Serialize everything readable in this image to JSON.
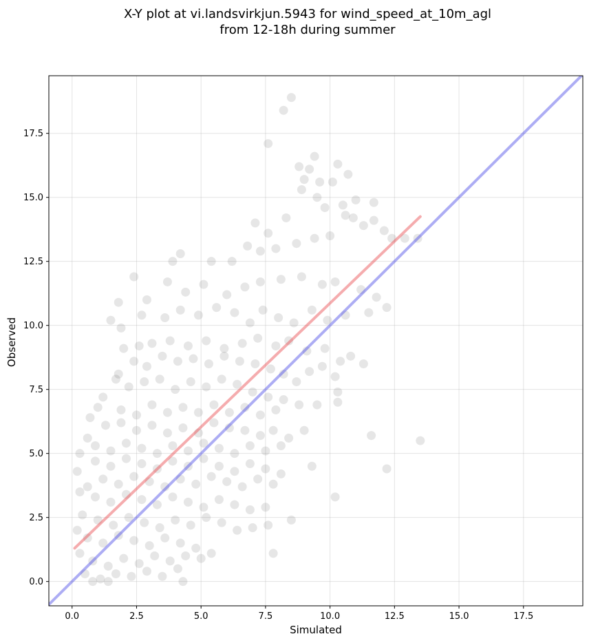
{
  "chart_data": {
    "type": "scatter",
    "title": "X-Y plot at vi.landsvirkjun.5943 for wind_speed_at_10m_agl",
    "subtitle": "from 12-18h during summer",
    "xlabel": "Simulated",
    "ylabel": "Observed",
    "xlim": [
      -0.9,
      19.8
    ],
    "ylim": [
      -0.95,
      19.75
    ],
    "xticks": [
      0.0,
      2.5,
      5.0,
      7.5,
      10.0,
      12.5,
      15.0,
      17.5
    ],
    "xtick_labels": [
      "0.0",
      "2.5",
      "5.0",
      "7.5",
      "10.0",
      "12.5",
      "15.0",
      "17.5"
    ],
    "yticks": [
      0.0,
      2.5,
      5.0,
      7.5,
      10.0,
      12.5,
      15.0,
      17.5
    ],
    "ytick_labels": [
      "0.0",
      "2.5",
      "5.0",
      "7.5",
      "10.0",
      "12.5",
      "15.0",
      "17.5"
    ],
    "grid": true,
    "point_color": "#555555",
    "point_opacity": 0.15,
    "regression_line": {
      "x": [
        0.1,
        13.5
      ],
      "y": [
        1.3,
        14.25
      ],
      "color": "#e8474c"
    },
    "identity_line": {
      "x": [
        -0.9,
        19.8
      ],
      "y": [
        -0.9,
        19.8
      ],
      "color": "#4a4ae6"
    },
    "points": [
      [
        8.5,
        18.9
      ],
      [
        8.2,
        18.4
      ],
      [
        7.6,
        17.1
      ],
      [
        9.4,
        16.6
      ],
      [
        10.3,
        16.3
      ],
      [
        9.2,
        16.1
      ],
      [
        8.8,
        16.2
      ],
      [
        10.7,
        15.9
      ],
      [
        10.1,
        15.6
      ],
      [
        9.6,
        15.6
      ],
      [
        9.0,
        15.7
      ],
      [
        8.9,
        15.3
      ],
      [
        9.5,
        15.0
      ],
      [
        11.0,
        14.9
      ],
      [
        10.5,
        14.7
      ],
      [
        11.7,
        14.8
      ],
      [
        10.9,
        14.2
      ],
      [
        12.1,
        13.7
      ],
      [
        11.7,
        14.1
      ],
      [
        13.4,
        13.4
      ],
      [
        12.4,
        13.4
      ],
      [
        10.0,
        13.5
      ],
      [
        9.4,
        13.4
      ],
      [
        8.7,
        13.2
      ],
      [
        7.6,
        13.6
      ],
      [
        7.1,
        14.0
      ],
      [
        7.9,
        13.0
      ],
      [
        7.3,
        12.9
      ],
      [
        6.8,
        13.1
      ],
      [
        6.2,
        12.5
      ],
      [
        5.4,
        12.5
      ],
      [
        4.2,
        12.8
      ],
      [
        3.9,
        12.5
      ],
      [
        2.4,
        11.9
      ],
      [
        3.7,
        11.7
      ],
      [
        4.4,
        11.3
      ],
      [
        5.1,
        11.6
      ],
      [
        6.0,
        11.2
      ],
      [
        6.7,
        11.5
      ],
      [
        7.3,
        11.7
      ],
      [
        8.1,
        11.8
      ],
      [
        8.9,
        11.9
      ],
      [
        9.7,
        11.6
      ],
      [
        10.2,
        11.7
      ],
      [
        11.2,
        11.4
      ],
      [
        11.8,
        11.1
      ],
      [
        12.2,
        10.7
      ],
      [
        11.5,
        10.5
      ],
      [
        10.6,
        10.4
      ],
      [
        9.9,
        10.2
      ],
      [
        9.3,
        10.6
      ],
      [
        8.6,
        10.1
      ],
      [
        8.0,
        10.3
      ],
      [
        7.4,
        10.6
      ],
      [
        6.9,
        10.1
      ],
      [
        6.3,
        10.5
      ],
      [
        5.6,
        10.7
      ],
      [
        4.9,
        10.4
      ],
      [
        4.2,
        10.6
      ],
      [
        3.6,
        10.3
      ],
      [
        2.9,
        11.0
      ],
      [
        2.7,
        10.4
      ],
      [
        1.5,
        10.2
      ],
      [
        1.8,
        10.9
      ],
      [
        1.9,
        9.9
      ],
      [
        2.0,
        9.1
      ],
      [
        2.6,
        9.2
      ],
      [
        3.1,
        9.3
      ],
      [
        3.8,
        9.4
      ],
      [
        4.5,
        9.2
      ],
      [
        5.2,
        9.4
      ],
      [
        5.9,
        9.1
      ],
      [
        6.6,
        9.3
      ],
      [
        7.2,
        9.5
      ],
      [
        7.9,
        9.2
      ],
      [
        8.4,
        9.4
      ],
      [
        9.1,
        9.0
      ],
      [
        9.8,
        9.1
      ],
      [
        10.4,
        8.6
      ],
      [
        10.8,
        8.8
      ],
      [
        11.3,
        8.5
      ],
      [
        10.2,
        8.0
      ],
      [
        9.7,
        8.4
      ],
      [
        9.2,
        8.2
      ],
      [
        8.7,
        7.8
      ],
      [
        8.2,
        8.1
      ],
      [
        7.7,
        8.3
      ],
      [
        7.1,
        8.5
      ],
      [
        6.5,
        8.6
      ],
      [
        5.9,
        8.8
      ],
      [
        5.3,
        8.5
      ],
      [
        4.7,
        8.7
      ],
      [
        4.1,
        8.6
      ],
      [
        3.5,
        8.8
      ],
      [
        2.9,
        8.4
      ],
      [
        2.4,
        8.6
      ],
      [
        1.8,
        8.1
      ],
      [
        1.7,
        7.9
      ],
      [
        2.2,
        7.6
      ],
      [
        2.8,
        7.8
      ],
      [
        3.4,
        7.9
      ],
      [
        4.0,
        7.5
      ],
      [
        4.6,
        7.8
      ],
      [
        5.2,
        7.6
      ],
      [
        5.8,
        7.9
      ],
      [
        6.4,
        7.7
      ],
      [
        7.0,
        7.4
      ],
      [
        7.6,
        7.2
      ],
      [
        8.2,
        7.1
      ],
      [
        8.8,
        6.9
      ],
      [
        9.5,
        6.9
      ],
      [
        10.3,
        7.0
      ],
      [
        10.3,
        7.4
      ],
      [
        7.9,
        6.7
      ],
      [
        7.3,
        6.5
      ],
      [
        6.7,
        6.8
      ],
      [
        6.1,
        6.6
      ],
      [
        5.5,
        6.9
      ],
      [
        4.9,
        6.6
      ],
      [
        4.3,
        6.8
      ],
      [
        3.7,
        6.6
      ],
      [
        3.1,
        6.9
      ],
      [
        2.5,
        6.5
      ],
      [
        1.9,
        6.7
      ],
      [
        1.2,
        7.2
      ],
      [
        1.0,
        6.8
      ],
      [
        0.7,
        6.4
      ],
      [
        1.3,
        6.1
      ],
      [
        1.9,
        6.2
      ],
      [
        2.5,
        5.9
      ],
      [
        3.1,
        6.1
      ],
      [
        3.7,
        5.8
      ],
      [
        4.3,
        6.0
      ],
      [
        4.9,
        5.8
      ],
      [
        5.5,
        6.2
      ],
      [
        6.1,
        6.0
      ],
      [
        6.7,
        5.9
      ],
      [
        7.3,
        5.7
      ],
      [
        7.8,
        5.9
      ],
      [
        8.4,
        5.6
      ],
      [
        9.0,
        5.9
      ],
      [
        11.6,
        5.7
      ],
      [
        13.5,
        5.5
      ],
      [
        8.1,
        5.3
      ],
      [
        7.5,
        5.1
      ],
      [
        6.9,
        5.3
      ],
      [
        6.3,
        5.0
      ],
      [
        5.7,
        5.2
      ],
      [
        5.1,
        5.4
      ],
      [
        4.5,
        5.1
      ],
      [
        3.9,
        5.3
      ],
      [
        3.3,
        5.0
      ],
      [
        2.7,
        5.2
      ],
      [
        2.1,
        5.4
      ],
      [
        1.5,
        5.1
      ],
      [
        0.9,
        5.3
      ],
      [
        0.6,
        5.6
      ],
      [
        0.3,
        5.0
      ],
      [
        0.9,
        4.7
      ],
      [
        1.5,
        4.5
      ],
      [
        2.1,
        4.8
      ],
      [
        2.7,
        4.6
      ],
      [
        3.3,
        4.4
      ],
      [
        3.9,
        4.7
      ],
      [
        4.5,
        4.5
      ],
      [
        5.1,
        4.8
      ],
      [
        5.7,
        4.5
      ],
      [
        6.3,
        4.3
      ],
      [
        6.9,
        4.6
      ],
      [
        7.5,
        4.4
      ],
      [
        8.1,
        4.2
      ],
      [
        9.3,
        4.5
      ],
      [
        12.2,
        4.4
      ],
      [
        7.8,
        3.8
      ],
      [
        7.2,
        4.0
      ],
      [
        6.6,
        3.7
      ],
      [
        6.0,
        3.9
      ],
      [
        5.4,
        4.1
      ],
      [
        4.8,
        3.8
      ],
      [
        4.2,
        4.0
      ],
      [
        3.6,
        3.7
      ],
      [
        3.0,
        3.9
      ],
      [
        2.4,
        4.1
      ],
      [
        1.8,
        3.8
      ],
      [
        1.2,
        4.0
      ],
      [
        0.6,
        3.7
      ],
      [
        0.2,
        4.3
      ],
      [
        0.3,
        3.5
      ],
      [
        0.9,
        3.3
      ],
      [
        1.5,
        3.1
      ],
      [
        2.1,
        3.4
      ],
      [
        2.7,
        3.2
      ],
      [
        3.3,
        3.0
      ],
      [
        3.9,
        3.3
      ],
      [
        4.5,
        3.1
      ],
      [
        5.1,
        2.9
      ],
      [
        5.7,
        3.2
      ],
      [
        6.3,
        3.0
      ],
      [
        6.9,
        2.8
      ],
      [
        7.5,
        2.9
      ],
      [
        8.5,
        2.4
      ],
      [
        10.2,
        3.3
      ],
      [
        7.6,
        2.2
      ],
      [
        7.0,
        2.1
      ],
      [
        6.4,
        2.0
      ],
      [
        5.8,
        2.3
      ],
      [
        5.2,
        2.5
      ],
      [
        4.6,
        2.2
      ],
      [
        4.0,
        2.4
      ],
      [
        3.4,
        2.1
      ],
      [
        2.8,
        2.3
      ],
      [
        2.2,
        2.5
      ],
      [
        1.6,
        2.2
      ],
      [
        1.0,
        2.4
      ],
      [
        0.4,
        2.6
      ],
      [
        0.2,
        2.0
      ],
      [
        0.6,
        1.7
      ],
      [
        1.2,
        1.5
      ],
      [
        1.8,
        1.8
      ],
      [
        2.4,
        1.6
      ],
      [
        3.0,
        1.4
      ],
      [
        3.6,
        1.7
      ],
      [
        4.2,
        1.5
      ],
      [
        4.8,
        1.3
      ],
      [
        5.4,
        1.1
      ],
      [
        5.0,
        0.9
      ],
      [
        4.4,
        1.0
      ],
      [
        3.8,
        0.8
      ],
      [
        3.2,
        1.0
      ],
      [
        2.6,
        0.7
      ],
      [
        2.0,
        0.9
      ],
      [
        1.4,
        0.6
      ],
      [
        0.8,
        0.8
      ],
      [
        0.3,
        1.1
      ],
      [
        0.5,
        0.3
      ],
      [
        1.1,
        0.1
      ],
      [
        1.7,
        0.3
      ],
      [
        2.3,
        0.2
      ],
      [
        2.9,
        0.4
      ],
      [
        3.5,
        0.2
      ],
      [
        4.1,
        0.5
      ],
      [
        4.3,
        0.0
      ],
      [
        1.4,
        0.0
      ],
      [
        0.8,
        0.0
      ],
      [
        7.8,
        1.1
      ],
      [
        12.9,
        13.4
      ],
      [
        9.8,
        14.6
      ],
      [
        8.3,
        14.2
      ],
      [
        10.6,
        14.3
      ],
      [
        11.3,
        13.9
      ]
    ]
  }
}
